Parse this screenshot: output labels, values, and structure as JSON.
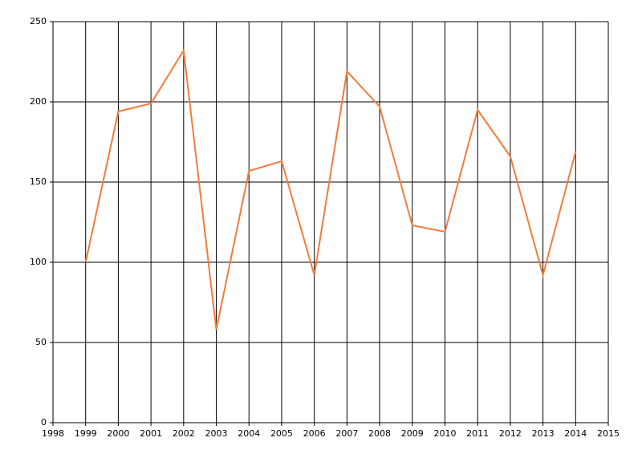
{
  "chart_data": {
    "type": "line",
    "x": [
      1999,
      2000,
      2001,
      2002,
      2003,
      2004,
      2005,
      2006,
      2007,
      2008,
      2009,
      2010,
      2011,
      2012,
      2013,
      2014
    ],
    "series": [
      {
        "color": "#f47b3c",
        "values": [
          100,
          194,
          199,
          232,
          58,
          157,
          163,
          92,
          219,
          197,
          123,
          119,
          195,
          166,
          92,
          169
        ]
      }
    ],
    "xlim": [
      1998,
      2015
    ],
    "xticks": [
      1998,
      1999,
      2000,
      2001,
      2002,
      2003,
      2004,
      2005,
      2006,
      2007,
      2008,
      2009,
      2010,
      2011,
      2012,
      2013,
      2014,
      2015
    ],
    "ylim": [
      0,
      250
    ],
    "yticks": [
      0,
      50,
      100,
      150,
      200,
      250
    ],
    "grid": true
  }
}
